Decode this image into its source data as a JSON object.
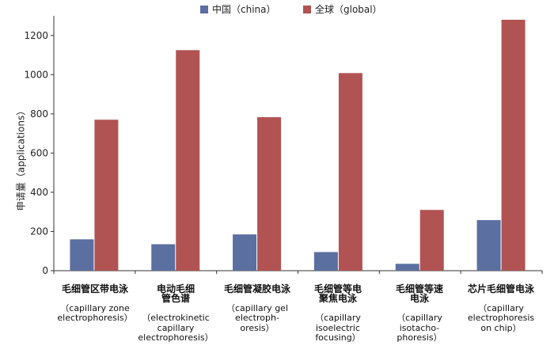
{
  "chart_data": {
    "type": "bar",
    "ylabel": "申请量（applications）",
    "ylim": [
      0,
      1300
    ],
    "yticks": [
      0,
      200,
      400,
      600,
      800,
      1000,
      1200
    ],
    "grid": false,
    "legend_position": "top-center",
    "categories": [
      {
        "cn": "毛细管区带电泳",
        "en": "（capillary zone\nelectrophoresis）"
      },
      {
        "cn": "电动毛细\n管色谱",
        "en": "（electrokinetic\ncapillary\nelectrophoresis）"
      },
      {
        "cn": "毛细管凝胶电泳",
        "en": "（capillary gel\nelectroph-\noresis）"
      },
      {
        "cn": "毛细管等电\n聚焦电泳",
        "en": "（capillary\nisoelectric\nfocusing）"
      },
      {
        "cn": "毛细管等速\n电泳",
        "en": "（capillary\nisotacho-\nphoresis）"
      },
      {
        "cn": "芯片毛细管电泳",
        "en": "（capillary\nelectrophoresis\non chip）"
      }
    ],
    "series": [
      {
        "name": "中国（china）",
        "color": "#5b6fa0",
        "values": [
          160,
          135,
          185,
          95,
          35,
          258
        ]
      },
      {
        "name": "全球（global）",
        "color": "#b15352",
        "values": [
          770,
          1125,
          783,
          1008,
          310,
          1280
        ]
      }
    ]
  }
}
